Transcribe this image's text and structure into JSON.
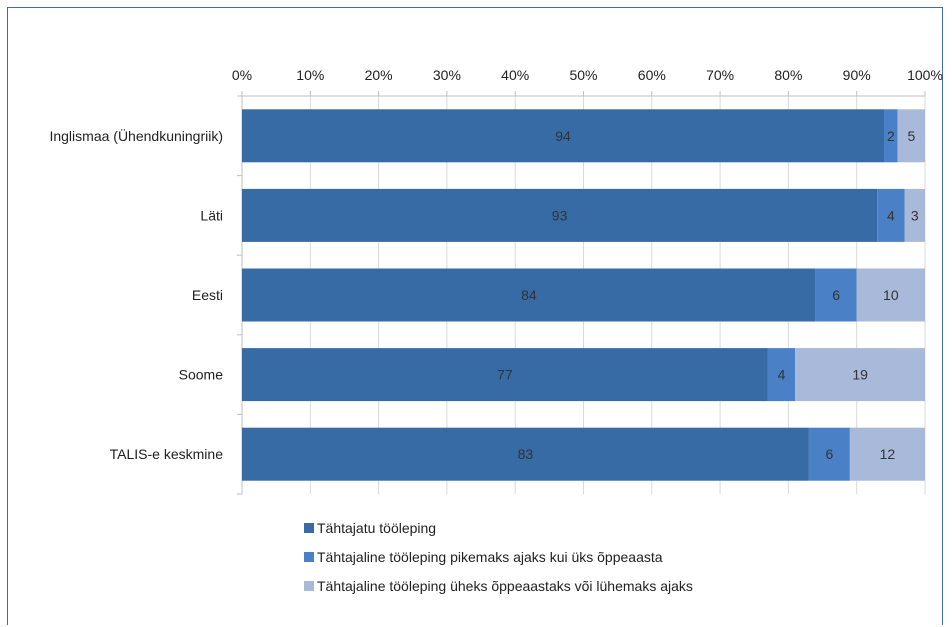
{
  "chart_data": {
    "type": "bar",
    "orientation": "horizontal",
    "stacked": true,
    "categories": [
      "Inglismaa (Ühendkuningriik)",
      "Läti",
      "Eesti",
      "Soome",
      "TALIS-e keskmine"
    ],
    "series": [
      {
        "name": "Tähtajatu tööleping",
        "color": "#366ba5",
        "values": [
          94,
          93,
          84,
          77,
          83
        ]
      },
      {
        "name": "Tähtajaline tööleping pikemaks ajaks kui üks õppeaasta",
        "color": "#4a80c6",
        "values": [
          2,
          4,
          6,
          4,
          6
        ]
      },
      {
        "name": "Tähtajaline tööleping üheks õppeaastaks või lühemaks ajaks",
        "color": "#a9b9da",
        "values": [
          5,
          3,
          10,
          19,
          12
        ]
      }
    ],
    "data_labels": [
      [
        "94",
        "93",
        "84",
        "77",
        "83"
      ],
      [
        "2",
        "4",
        "6",
        "4",
        "6"
      ],
      [
        "5",
        "3",
        "10",
        "19",
        "12"
      ]
    ],
    "xaxis": {
      "position": "top",
      "range": [
        0,
        100
      ],
      "ticks": [
        "0%",
        "10%",
        "20%",
        "30%",
        "40%",
        "50%",
        "60%",
        "70%",
        "80%",
        "90%",
        "100%"
      ]
    },
    "grid": true,
    "legend": "bottom"
  }
}
